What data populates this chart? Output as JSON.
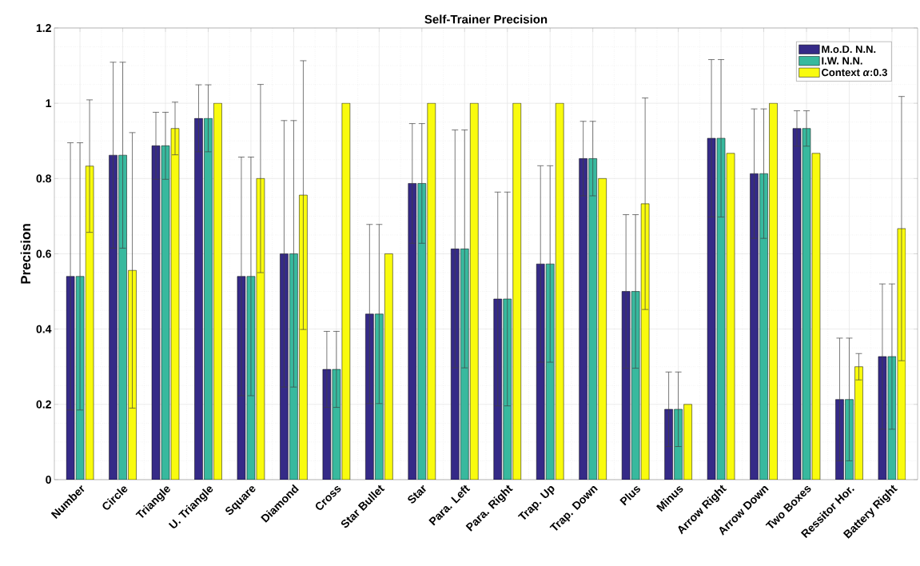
{
  "chart_data": {
    "type": "bar",
    "title": "Self-Trainer Precision",
    "ylabel": "Precision",
    "categories": [
      "Number",
      "Circle",
      "Triangle",
      "U. Triangle",
      "Square",
      "Diamond",
      "Cross",
      "Star Bullet",
      "Star",
      "Para. Left",
      "Para. Right",
      "Trap. Up",
      "Trap. Down",
      "Plus",
      "Minus",
      "Arrow Right",
      "Arrow Down",
      "Two Boxes",
      "Ressitor Hor.",
      "Battery Right"
    ],
    "series": [
      {
        "name": "M.o.D. N.N.",
        "color": "#352a87",
        "values": [
          0.54,
          0.862,
          0.887,
          0.96,
          0.54,
          0.6,
          0.293,
          0.44,
          0.787,
          0.613,
          0.48,
          0.573,
          0.853,
          0.5,
          0.187,
          0.907,
          0.813,
          0.933,
          0.213,
          0.327
        ],
        "errors": [
          0.355,
          0.247,
          0.089,
          0.089,
          0.317,
          0.354,
          0.101,
          0.238,
          0.159,
          0.316,
          0.284,
          0.261,
          0.099,
          0.204,
          0.099,
          0.209,
          0.172,
          0.047,
          0.163,
          0.193
        ]
      },
      {
        "name": "I.W. N.N.",
        "color": "#38b99e",
        "values": [
          0.54,
          0.862,
          0.887,
          0.96,
          0.54,
          0.6,
          0.293,
          0.44,
          0.787,
          0.613,
          0.48,
          0.573,
          0.853,
          0.5,
          0.187,
          0.907,
          0.813,
          0.933,
          0.213,
          0.327
        ],
        "errors": [
          0.355,
          0.247,
          0.089,
          0.089,
          0.317,
          0.354,
          0.101,
          0.238,
          0.159,
          0.316,
          0.284,
          0.261,
          0.099,
          0.204,
          0.099,
          0.209,
          0.172,
          0.047,
          0.163,
          0.193
        ]
      },
      {
        "name": "Context *α*:0.3",
        "color": "#f9fb0e",
        "values": [
          0.833,
          0.556,
          0.933,
          1.0,
          0.8,
          0.756,
          1.0,
          0.6,
          1.0,
          1.0,
          1.0,
          1.0,
          0.8,
          0.733,
          0.2,
          0.867,
          1.0,
          0.867,
          0.3,
          0.667
        ],
        "errors": [
          0.176,
          0.366,
          0.07,
          null,
          0.25,
          0.357,
          null,
          null,
          null,
          null,
          null,
          null,
          null,
          0.281,
          null,
          null,
          null,
          null,
          0.035,
          0.351
        ]
      }
    ],
    "ylim": [
      0,
      1.2
    ],
    "yticks": [
      0,
      0.2,
      0.4,
      0.6,
      0.8,
      1,
      1.2
    ],
    "grid": true,
    "legend": "top right"
  }
}
